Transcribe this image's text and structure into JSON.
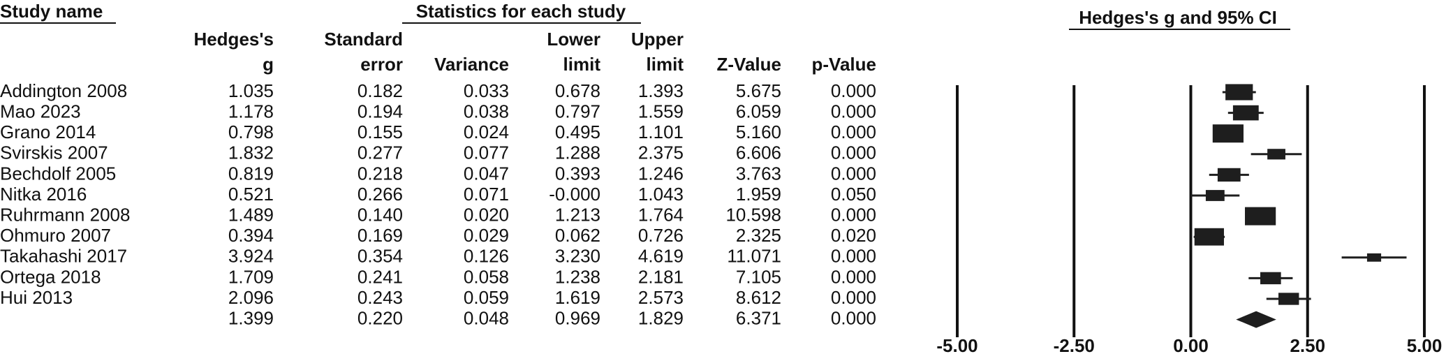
{
  "table": {
    "study_header": "Study name",
    "group_header": "Statistics for each study",
    "columns": [
      {
        "lines": [
          "Hedges's",
          "g"
        ]
      },
      {
        "lines": [
          "Standard",
          "error"
        ]
      },
      {
        "lines": [
          "Variance"
        ]
      },
      {
        "lines": [
          "Lower",
          "limit"
        ]
      },
      {
        "lines": [
          "Upper",
          "limit"
        ]
      },
      {
        "lines": [
          "Z-Value"
        ]
      },
      {
        "lines": [
          "p-Value"
        ]
      }
    ],
    "rows": [
      [
        "Addington 2008",
        "1.035",
        "0.182",
        "0.033",
        "0.678",
        "1.393",
        "5.675",
        "0.000"
      ],
      [
        "Mao 2023",
        "1.178",
        "0.194",
        "0.038",
        "0.797",
        "1.559",
        "6.059",
        "0.000"
      ],
      [
        "Grano 2014",
        "0.798",
        "0.155",
        "0.024",
        "0.495",
        "1.101",
        "5.160",
        "0.000"
      ],
      [
        "Svirskis 2007",
        "1.832",
        "0.277",
        "0.077",
        "1.288",
        "2.375",
        "6.606",
        "0.000"
      ],
      [
        "Bechdolf 2005",
        "0.819",
        "0.218",
        "0.047",
        "0.393",
        "1.246",
        "3.763",
        "0.000"
      ],
      [
        "Nitka 2016",
        "0.521",
        "0.266",
        "0.071",
        "-0.000",
        "1.043",
        "1.959",
        "0.050"
      ],
      [
        "Ruhrmann 2008",
        "1.489",
        "0.140",
        "0.020",
        "1.213",
        "1.764",
        "10.598",
        "0.000"
      ],
      [
        "Ohmuro 2007",
        "0.394",
        "0.169",
        "0.029",
        "0.062",
        "0.726",
        "2.325",
        "0.020"
      ],
      [
        "Takahashi 2017",
        "3.924",
        "0.354",
        "0.126",
        "3.230",
        "4.619",
        "11.071",
        "0.000"
      ],
      [
        "Ortega 2018",
        "1.709",
        "0.241",
        "0.058",
        "1.238",
        "2.181",
        "7.105",
        "0.000"
      ],
      [
        "Hui 2013",
        "2.096",
        "0.243",
        "0.059",
        "1.619",
        "2.573",
        "8.612",
        "0.000"
      ]
    ],
    "summary_row": [
      "1.399",
      "0.220",
      "0.048",
      "0.969",
      "1.829",
      "6.371",
      "0.000"
    ]
  },
  "chart_data": {
    "type": "forest",
    "title": "Hedges's g and 95% CI",
    "values": [
      1.035,
      1.178,
      0.798,
      1.832,
      0.819,
      0.521,
      1.489,
      0.394,
      3.924,
      1.709,
      2.096
    ],
    "lower": [
      0.678,
      0.797,
      0.495,
      1.288,
      0.393,
      0,
      1.213,
      0.062,
      3.23,
      1.238,
      1.619
    ],
    "upper": [
      1.393,
      1.559,
      1.101,
      2.375,
      1.246,
      1.043,
      1.764,
      0.726,
      4.619,
      2.181,
      2.573
    ],
    "se": [
      0.182,
      0.194,
      0.155,
      0.277,
      0.218,
      0.266,
      0.14,
      0.169,
      0.354,
      0.241,
      0.243
    ],
    "summary": {
      "value": 1.399,
      "lower": 0.969,
      "upper": 1.829
    },
    "xlim": [
      -5,
      5
    ],
    "xticks": [
      {
        "value": -5,
        "label": "-5.00"
      },
      {
        "value": -2.5,
        "label": "-2.50"
      },
      {
        "value": 0,
        "label": "0.00"
      },
      {
        "value": 2.5,
        "label": "2.50"
      },
      {
        "value": 5,
        "label": "5.00"
      }
    ],
    "grid": true,
    "color": "#1e1e1e"
  }
}
